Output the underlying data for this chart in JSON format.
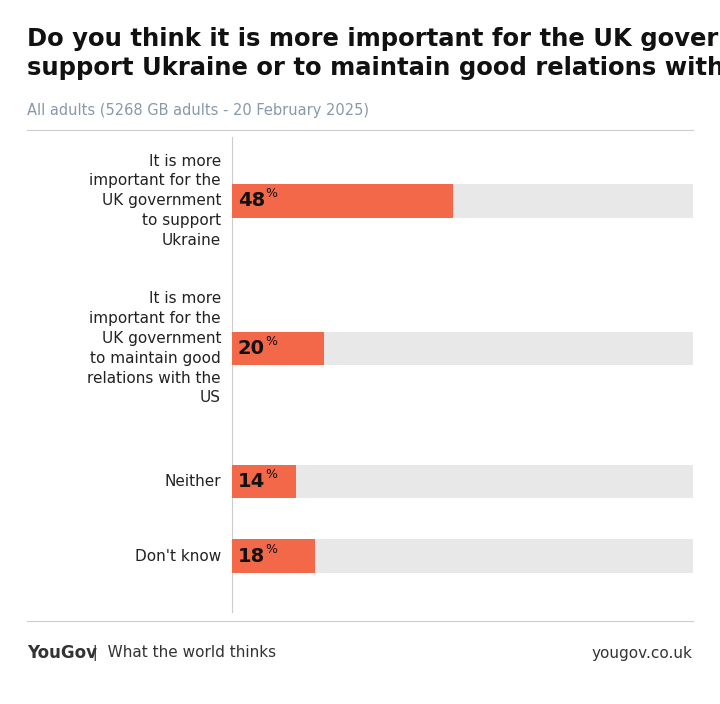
{
  "title_line1": "Do you think it is more important for the UK government to",
  "title_line2": "support Ukraine or to maintain good relations with the US?",
  "subtitle": "All adults (5268 GB adults - 20 February 2025)",
  "categories": [
    "It is more\nimportant for the\nUK government\nto support\nUkraine",
    "It is more\nimportant for the\nUK government\nto maintain good\nrelations with the\nUS",
    "Neither",
    "Don't know"
  ],
  "values": [
    48,
    20,
    14,
    18
  ],
  "bar_color": "#F4684A",
  "bg_bar_color": "#E8E8E8",
  "background_color": "#FFFFFF",
  "title_fontsize": 17.5,
  "subtitle_fontsize": 10.5,
  "label_fontsize": 11,
  "value_fontsize": 14,
  "pct_fontsize": 9,
  "footer_left_bold": "YouGov",
  "footer_left_text": "  |  What the world thinks",
  "footer_right": "yougov.co.uk",
  "title_color": "#111111",
  "subtitle_color": "#8899AA",
  "label_color": "#222222",
  "value_color": "#111111",
  "footer_color": "#333333",
  "separator_color": "#CCCCCC",
  "vertical_line_color": "#CCCCCC"
}
